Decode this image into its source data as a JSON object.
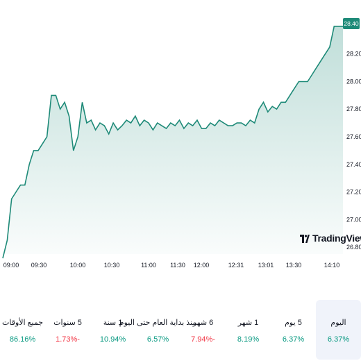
{
  "chart_data": {
    "type": "area",
    "y_ticks": [
      "28.40",
      "28.20",
      "28.00",
      "27.80",
      "27.60",
      "27.40",
      "27.20",
      "27.00",
      "26.80"
    ],
    "x_ticks": [
      "09:00",
      "09:30",
      "10:00",
      "10:30",
      "11:00",
      "11:30",
      "12:00",
      "12:31",
      "13:01",
      "13:30",
      "14:10"
    ],
    "ylim": [
      26.75,
      28.45
    ],
    "last_price": "28.40",
    "series": [
      {
        "values": [
          26.72,
          26.85,
          27.15,
          27.2,
          27.25,
          27.25,
          27.4,
          27.5,
          27.5,
          27.55,
          27.6,
          27.9,
          27.9,
          27.8,
          27.85,
          27.75,
          27.5,
          27.6,
          27.85,
          27.7,
          27.72,
          27.65,
          27.7,
          27.68,
          27.62,
          27.7,
          27.65,
          27.68,
          27.72,
          27.7,
          27.75,
          27.68,
          27.72,
          27.7,
          27.65,
          27.7,
          27.68,
          27.66,
          27.7,
          27.68,
          27.72,
          27.66,
          27.7,
          27.68,
          27.72,
          27.66,
          27.66,
          27.7,
          27.68,
          27.72,
          27.7,
          27.68,
          27.68,
          27.7,
          27.7,
          27.68,
          27.72,
          27.7,
          27.8,
          27.85,
          27.78,
          27.82,
          27.8,
          27.85,
          27.85,
          27.9,
          27.95,
          28.0,
          28.0,
          28.0,
          28.05,
          28.1,
          28.15,
          28.2,
          28.25,
          28.4,
          28.4,
          28.4
        ]
      }
    ]
  },
  "brand": "TradingView",
  "periods": [
    {
      "label": "اليوم",
      "value": "6.37%",
      "tone": "pos",
      "active": true
    },
    {
      "label": "5 يوم",
      "value": "6.37%",
      "tone": "pos",
      "active": false
    },
    {
      "label": "1 شهر",
      "value": "8.19%",
      "tone": "pos",
      "active": false
    },
    {
      "label": "6 شهر",
      "value": "7.94%-",
      "tone": "neg",
      "active": false
    },
    {
      "label": "منذ بداية العام حتى اليوم",
      "value": "6.57%",
      "tone": "pos",
      "active": false
    },
    {
      "label": "1 سنة",
      "value": "10.94%",
      "tone": "pos",
      "active": false
    },
    {
      "label": "5 سنوات",
      "value": "1.73%-",
      "tone": "neg",
      "active": false
    },
    {
      "label": "جميع الأوقات",
      "value": "86.16%",
      "tone": "pos",
      "active": false
    }
  ],
  "colors": {
    "line": "#1e8a78",
    "positive": "#089981",
    "negative": "#f23645",
    "badge": "#1e8a78"
  }
}
